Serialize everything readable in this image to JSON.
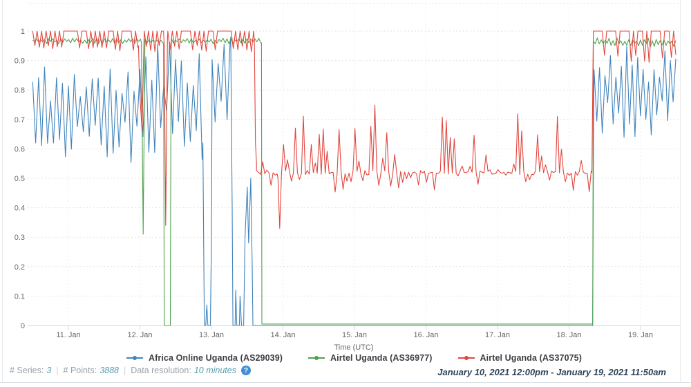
{
  "footer": {
    "series_label": "# Series:",
    "series_value": "3",
    "points_label": "# Points:",
    "points_value": "3888",
    "resolution_label": "Data resolution:",
    "resolution_value": "10 minutes",
    "separator": "|",
    "help_icon_glyph": "?",
    "date_range": "January 10, 2021 12:00pm - January 19, 2021 11:50am"
  },
  "colors": {
    "blue_series": "#4084bd",
    "green_series": "#4ea24e",
    "red_series": "#e2463e",
    "axis_line": "#ccd6eb",
    "grid_h": "#e2e2e2",
    "grid_v": "#ededed",
    "axis_text": "#666666",
    "help_icon_bg": "#3e8ed8"
  },
  "chart_data": {
    "type": "line",
    "title": "",
    "xlabel": "Time (UTC)",
    "ylabel": "",
    "x_unit": "day of January 2021 (fractional, UTC)",
    "x_range": [
      10.5,
      19.493
    ],
    "ylim": [
      0,
      1
    ],
    "grid": "dashed",
    "legend_position": "bottom",
    "x_ticks": [
      {
        "t": 11,
        "label": "11. Jan"
      },
      {
        "t": 12,
        "label": "12. Jan"
      },
      {
        "t": 13,
        "label": "13. Jan"
      },
      {
        "t": 14,
        "label": "14. Jan"
      },
      {
        "t": 15,
        "label": "15. Jan"
      },
      {
        "t": 16,
        "label": "16. Jan"
      },
      {
        "t": 17,
        "label": "17. Jan"
      },
      {
        "t": 18,
        "label": "18. Jan"
      },
      {
        "t": 19,
        "label": "19. Jan"
      }
    ],
    "y_ticks": [
      {
        "v": 0,
        "label": "0"
      },
      {
        "v": 0.1,
        "label": "0.1"
      },
      {
        "v": 0.2,
        "label": "0.2"
      },
      {
        "v": 0.3,
        "label": "0.3"
      },
      {
        "v": 0.4,
        "label": "0.4"
      },
      {
        "v": 0.5,
        "label": "0.5"
      },
      {
        "v": 0.6,
        "label": "0.6"
      },
      {
        "v": 0.7,
        "label": "0.7"
      },
      {
        "v": 0.8,
        "label": "0.8"
      },
      {
        "v": 0.9,
        "label": "0.9"
      },
      {
        "v": 1,
        "label": "1"
      }
    ],
    "series": [
      {
        "name": "Africa Online Uganda (AS29039)",
        "color": "#4084bd",
        "seed": 11,
        "segments": [
          {
            "type": "noise",
            "t0": 10.5,
            "t1": 12.0,
            "lo": 0.55,
            "hi": 0.9,
            "step_min": 60
          },
          {
            "type": "noise",
            "t0": 12.0,
            "t1": 12.87,
            "lo": 0.56,
            "hi": 0.99,
            "step_min": 60
          },
          {
            "type": "points",
            "pts": [
              [
                12.88,
                0.62
              ],
              [
                12.9,
                0
              ],
              [
                12.92,
                0
              ],
              [
                12.935,
                0.07
              ],
              [
                12.95,
                0
              ],
              [
                12.985,
                0
              ],
              [
                13.0,
                0.3
              ]
            ]
          },
          {
            "type": "noise",
            "t0": 13.01,
            "t1": 13.26,
            "lo": 0.6,
            "hi": 1.0,
            "step_min": 60
          },
          {
            "type": "points",
            "pts": [
              [
                13.27,
                0.98
              ],
              [
                13.29,
                0.4
              ],
              [
                13.3,
                0
              ],
              [
                13.33,
                0
              ],
              [
                13.34,
                0.12
              ],
              [
                13.355,
                0
              ],
              [
                13.39,
                0
              ],
              [
                13.4,
                0.1
              ],
              [
                13.42,
                0
              ],
              [
                13.45,
                0
              ],
              [
                13.47,
                0.3
              ],
              [
                13.5,
                0.47
              ],
              [
                13.52,
                0.28
              ],
              [
                13.55,
                0.5
              ],
              [
                13.57,
                0.2
              ],
              [
                13.58,
                0
              ]
            ]
          },
          {
            "type": "flat",
            "t0": 13.58,
            "t1": 18.33,
            "v": 0
          },
          {
            "type": "points",
            "pts": [
              [
                18.33,
                0
              ],
              [
                18.345,
                0.72
              ]
            ]
          },
          {
            "type": "noise",
            "t0": 18.35,
            "t1": 19.493,
            "lo": 0.63,
            "hi": 0.97,
            "step_min": 55
          }
        ]
      },
      {
        "name": "Airtel Uganda (AS36977)",
        "color": "#4ea24e",
        "seed": 23,
        "segments": [
          {
            "type": "noise",
            "t0": 10.5,
            "t1": 12.01,
            "lo": 0.957,
            "hi": 0.976,
            "step_min": 40
          },
          {
            "type": "points",
            "pts": [
              [
                12.02,
                0.96
              ],
              [
                12.045,
                0.31
              ],
              [
                12.07,
                0.96
              ]
            ]
          },
          {
            "type": "noise",
            "t0": 12.07,
            "t1": 12.32,
            "lo": 0.957,
            "hi": 0.976,
            "step_min": 40
          },
          {
            "type": "points",
            "pts": [
              [
                12.33,
                0.96
              ],
              [
                12.34,
                0
              ],
              [
                12.425,
                0
              ],
              [
                12.435,
                0.88
              ],
              [
                12.44,
                0.96
              ]
            ]
          },
          {
            "type": "noise",
            "t0": 12.44,
            "t1": 13.69,
            "lo": 0.957,
            "hi": 0.976,
            "step_min": 40
          },
          {
            "type": "points",
            "pts": [
              [
                13.7,
                0.96
              ],
              [
                13.705,
                0.005
              ]
            ]
          },
          {
            "type": "flat",
            "t0": 13.705,
            "t1": 18.325,
            "v": 0.005
          },
          {
            "type": "points",
            "pts": [
              [
                18.33,
                0.005
              ],
              [
                18.34,
                0.96
              ]
            ]
          },
          {
            "type": "noise",
            "t0": 18.34,
            "t1": 19.493,
            "lo": 0.945,
            "hi": 0.978,
            "step_min": 40
          }
        ]
      },
      {
        "name": "Airtel Uganda (AS37075)",
        "color": "#e2463e",
        "seed": 37,
        "segments": [
          {
            "type": "noise",
            "mode": "extremes",
            "t0": 10.5,
            "t1": 11.97,
            "lo": 0.93,
            "hi": 1.0,
            "step_min": 45
          },
          {
            "type": "points",
            "pts": [
              [
                11.98,
                0.95
              ],
              [
                12.0,
                0.78
              ],
              [
                12.03,
                0.66
              ],
              [
                12.05,
                0.9
              ]
            ]
          },
          {
            "type": "noise",
            "mode": "extremes",
            "t0": 12.06,
            "t1": 12.33,
            "lo": 0.93,
            "hi": 1.0,
            "step_min": 45
          },
          {
            "type": "points",
            "pts": [
              [
                12.34,
                0.95
              ],
              [
                12.36,
                0.34
              ],
              [
                12.385,
                0.97
              ]
            ]
          },
          {
            "type": "noise",
            "mode": "extremes",
            "t0": 12.39,
            "t1": 13.59,
            "lo": 0.93,
            "hi": 1.0,
            "step_min": 45
          },
          {
            "type": "points",
            "pts": [
              [
                13.6,
                0.97
              ],
              [
                13.615,
                0.62
              ],
              [
                13.63,
                0.55
              ]
            ]
          },
          {
            "type": "noise",
            "mode": "base",
            "t0": 13.63,
            "t1": 13.92,
            "base": 0.52,
            "lo": 0.46,
            "hi": 0.66,
            "step_min": 40
          },
          {
            "type": "points",
            "pts": [
              [
                13.93,
                0.5
              ],
              [
                13.955,
                0.33
              ],
              [
                13.98,
                0.52
              ]
            ]
          },
          {
            "type": "noise",
            "mode": "base",
            "t0": 13.98,
            "t1": 18.31,
            "base": 0.52,
            "lo": 0.45,
            "hi": 0.75,
            "step_min": 40
          },
          {
            "type": "points",
            "pts": [
              [
                18.32,
                0.52
              ],
              [
                18.335,
                0.9
              ]
            ]
          },
          {
            "type": "noise",
            "mode": "extremes",
            "t0": 18.34,
            "t1": 19.493,
            "lo": 0.885,
            "hi": 1.0,
            "step_min": 45
          }
        ]
      }
    ]
  }
}
